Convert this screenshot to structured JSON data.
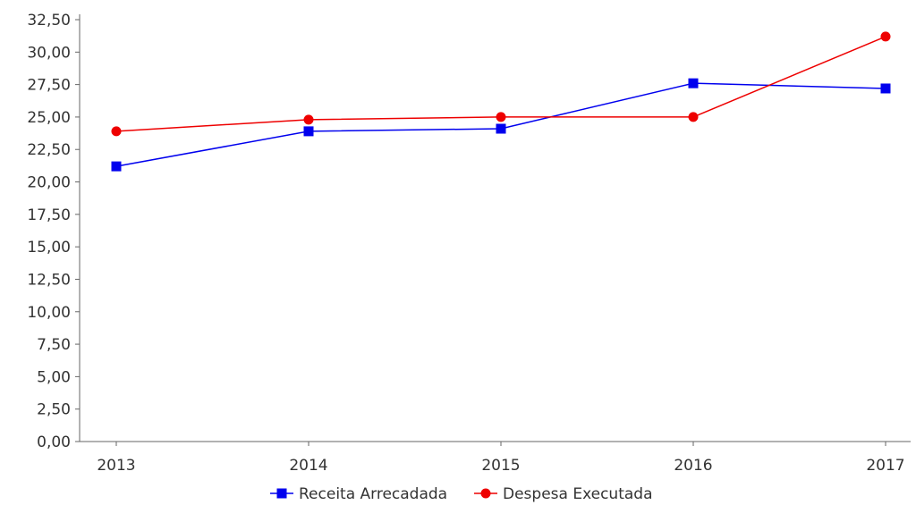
{
  "chart_data": {
    "type": "line",
    "title": "",
    "xlabel": "",
    "ylabel": "",
    "categories": [
      "2013",
      "2014",
      "2015",
      "2016",
      "2017"
    ],
    "ylim": [
      0,
      32.5
    ],
    "ytick_step": 2.5,
    "ytick_labels": [
      "0,00",
      "2,50",
      "5,00",
      "7,50",
      "10,00",
      "12,50",
      "15,00",
      "17,50",
      "20,00",
      "22,50",
      "25,00",
      "27,50",
      "30,00",
      "32,50"
    ],
    "grid": false,
    "legend_position": "bottom",
    "series": [
      {
        "name": "Receita Arrecadada",
        "color": "#0000ee",
        "marker": "square",
        "values": [
          21.2,
          23.9,
          24.1,
          27.6,
          27.2
        ]
      },
      {
        "name": "Despesa Executada",
        "color": "#ee0000",
        "marker": "circle",
        "values": [
          23.9,
          24.8,
          25.0,
          25.0,
          31.2
        ]
      }
    ]
  }
}
